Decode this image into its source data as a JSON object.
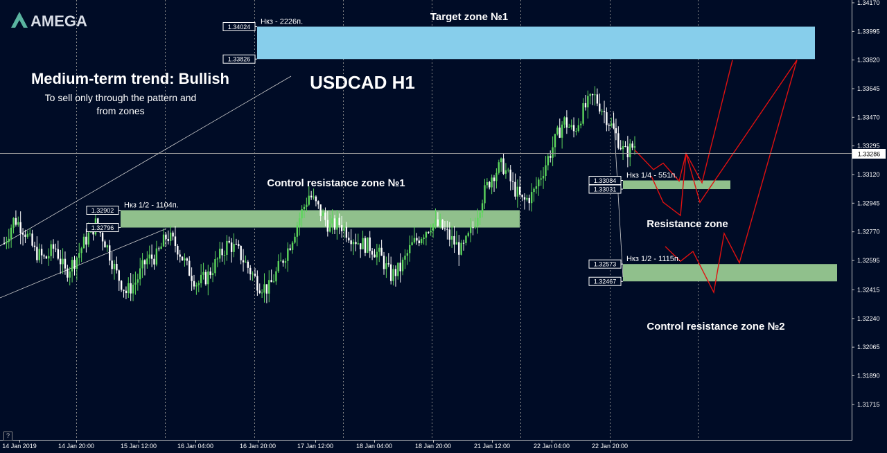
{
  "logo": {
    "text": "AMEGA",
    "mark": "amega-logo-mark"
  },
  "titles": {
    "trend": "Medium-term trend: Bullish",
    "note_line1": "To sell only through the pattern and",
    "note_line2": "from zones",
    "symbol": "USDCAD H1"
  },
  "colors": {
    "background": "#000c26",
    "bull_candle": "#5cd65c",
    "bear_candle": "#ffffff",
    "target_zone": "#87ceeb",
    "control_zone": "#90c08c",
    "projection": "#e01010",
    "grid": "#8a8a8a"
  },
  "chart_data": {
    "type": "candlestick",
    "symbol": "USDCAD",
    "timeframe": "H1",
    "y_range": [
      1.316,
      1.3417
    ],
    "current_price": "1.33286",
    "y_ticks": [
      "1.34170",
      "1.33995",
      "1.33820",
      "1.33645",
      "1.33470",
      "1.33295",
      "1.33120",
      "1.32945",
      "1.32770",
      "1.32595",
      "1.32415",
      "1.32240",
      "1.32065",
      "1.31890",
      "1.31715"
    ],
    "x_ticks": [
      "14 Jan 2019",
      "14 Jan 20:00",
      "15 Jan 12:00",
      "16 Jan 04:00",
      "16 Jan 20:00",
      "17 Jan 12:00",
      "18 Jan 04:00",
      "18 Jan 20:00",
      "21 Jan 12:00",
      "22 Jan 04:00",
      "22 Jan 20:00"
    ],
    "price_path": [
      1.327,
      1.3285,
      1.3278,
      1.3265,
      1.326,
      1.3268,
      1.3252,
      1.326,
      1.3272,
      1.3282,
      1.327,
      1.3252,
      1.324,
      1.3247,
      1.326,
      1.3262,
      1.3275,
      1.3268,
      1.3255,
      1.3245,
      1.325,
      1.326,
      1.327,
      1.3265,
      1.3255,
      1.3245,
      1.3242,
      1.3255,
      1.3268,
      1.3285,
      1.33,
      1.329,
      1.328,
      1.3282,
      1.3275,
      1.327,
      1.3268,
      1.3262,
      1.325,
      1.3255,
      1.3268,
      1.3275,
      1.3282,
      1.328,
      1.3272,
      1.3265,
      1.3278,
      1.3298,
      1.3312,
      1.3318,
      1.3305,
      1.3295,
      1.33,
      1.3315,
      1.333,
      1.3345,
      1.3338,
      1.3352,
      1.336,
      1.335,
      1.3338,
      1.3325,
      1.333
    ],
    "zones": [
      {
        "name": "Target zone №1",
        "top": 1.34024,
        "bottom": 1.33826,
        "top_label": "1.34024",
        "bottom_label": "1.33826",
        "note": "Нкз - 2226п."
      },
      {
        "name": "Control resistance zone №1",
        "top": 1.32902,
        "bottom": 1.32796,
        "top_label": "1.32902",
        "bottom_label": "1.32796",
        "note": "Нкз 1/2 - 1104п."
      },
      {
        "name": "Resistance zone",
        "top": 1.33084,
        "bottom": 1.33031,
        "top_label": "1.33084",
        "bottom_label": "1.33031",
        "note": "Нкз 1/4 - 551п."
      },
      {
        "name": "Control resistance zone №2",
        "top": 1.32573,
        "bottom": 1.32467,
        "top_label": "1.32573",
        "bottom_label": "1.32467",
        "note": "Нкз 1/2 - 1115п."
      }
    ],
    "projections": [
      [
        1.3327,
        1.3315,
        1.3319,
        1.3308,
        1.3325,
        1.3307,
        1.3382
      ],
      [
        1.3311,
        1.3295,
        1.3287,
        1.3325,
        1.3295,
        1.3382
      ],
      [
        1.3268,
        1.3259,
        1.3265,
        1.324,
        1.3276,
        1.3258,
        1.3382
      ],
      [
        1.3275,
        1.326,
        1.3263,
        1.325,
        1.3255
      ]
    ]
  }
}
